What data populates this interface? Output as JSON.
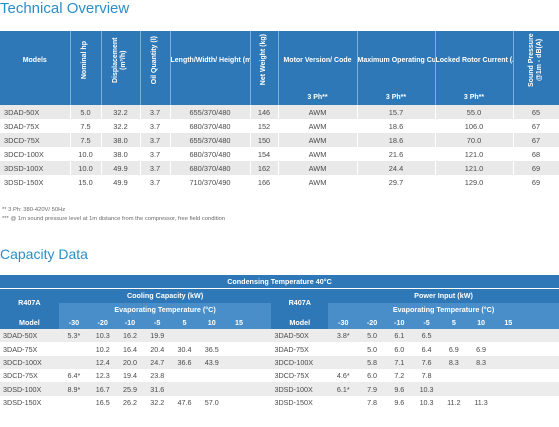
{
  "tech": {
    "title": "Technical Overview",
    "headers": {
      "models": "Models",
      "hp": "Nominal hp",
      "disp": "Displacement (m³/h)",
      "oil": "Oil Quantity (l)",
      "dims": "Length/Width/ Height (mm)",
      "weight": "Net Weight (kg)",
      "motor": "Motor Version/ Code",
      "maxop": "Maximum Operating Current (A)",
      "lra": "Locked Rotor Current (A)",
      "sound": "Sound Pressure @1m - dB(A)"
    },
    "sub": {
      "motor": "3 Ph**",
      "maxop": "3 Ph**",
      "lra": "3 Ph**"
    },
    "rows": [
      [
        "3DAD-50X",
        "5.0",
        "32.2",
        "3.7",
        "655/370/480",
        "146",
        "AWM",
        "15.7",
        "55.0",
        "65"
      ],
      [
        "3DAD-75X",
        "7.5",
        "32.2",
        "3.7",
        "680/370/480",
        "152",
        "AWM",
        "18.6",
        "106.0",
        "67"
      ],
      [
        "3DCD-75X",
        "7.5",
        "38.0",
        "3.7",
        "655/370/480",
        "150",
        "AWM",
        "18.6",
        "70.0",
        "67"
      ],
      [
        "3DCD-100X",
        "10.0",
        "38.0",
        "3.7",
        "680/370/480",
        "154",
        "AWM",
        "21.6",
        "121.0",
        "68"
      ],
      [
        "3DSD-100X",
        "10.0",
        "49.9",
        "3.7",
        "680/370/480",
        "162",
        "AWM",
        "24.4",
        "121.0",
        "69"
      ],
      [
        "3DSD-150X",
        "15.0",
        "49.9",
        "3.7",
        "710/370/490",
        "166",
        "AWM",
        "29.7",
        "129.0",
        "69"
      ]
    ],
    "footnote1": "** 3 Ph: 380-420V/ 50Hz",
    "footnote2": "*** @ 1m sound pressure level at 1m distance from the compressor, free field condition"
  },
  "cap": {
    "title": "Capacity Data",
    "condensing": "Condensing Temperature 40°C",
    "refrigerant": "R407A",
    "cooling": "Cooling Capacity (kW)",
    "power": "Power Input (kW)",
    "evap": "Evaporating Temperature (°C)",
    "model_label": "Model",
    "temps": [
      "-30",
      "-20",
      "-10",
      "-5",
      "5",
      "10",
      "15"
    ],
    "cooling_rows": [
      [
        "3DAD-50X",
        "5.3*",
        "10.3",
        "16.2",
        "19.9",
        "",
        "",
        ""
      ],
      [
        "3DAD-75X",
        "",
        "10.2",
        "16.4",
        "20.4",
        "30.4",
        "36.5",
        ""
      ],
      [
        "3DCD-100X",
        "",
        "12.4",
        "20.0",
        "24.7",
        "36.6",
        "43.9",
        ""
      ],
      [
        "3DCD-75X",
        "6.4*",
        "12.3",
        "19.4",
        "23.8",
        "",
        "",
        ""
      ],
      [
        "3DSD-100X",
        "8.9*",
        "16.7",
        "25.9",
        "31.6",
        "",
        "",
        ""
      ],
      [
        "3DSD-150X",
        "",
        "16.5",
        "26.2",
        "32.2",
        "47.6",
        "57.0",
        ""
      ]
    ],
    "power_rows": [
      [
        "3DAD-50X",
        "3.8*",
        "5.0",
        "6.1",
        "6.5",
        "",
        "",
        ""
      ],
      [
        "3DAD-75X",
        "",
        "5.0",
        "6.0",
        "6.4",
        "6.9",
        "6.9",
        ""
      ],
      [
        "3DCD-100X",
        "",
        "5.8",
        "7.1",
        "7.6",
        "8.3",
        "8.3",
        ""
      ],
      [
        "3DCD-75X",
        "4.6*",
        "6.0",
        "7.2",
        "7.8",
        "",
        "",
        ""
      ],
      [
        "3DSD-100X",
        "6.1*",
        "7.9",
        "9.6",
        "10.3",
        "",
        "",
        ""
      ],
      [
        "3DSD-150X",
        "",
        "7.8",
        "9.6",
        "10.3",
        "11.2",
        "11.3",
        ""
      ]
    ]
  }
}
